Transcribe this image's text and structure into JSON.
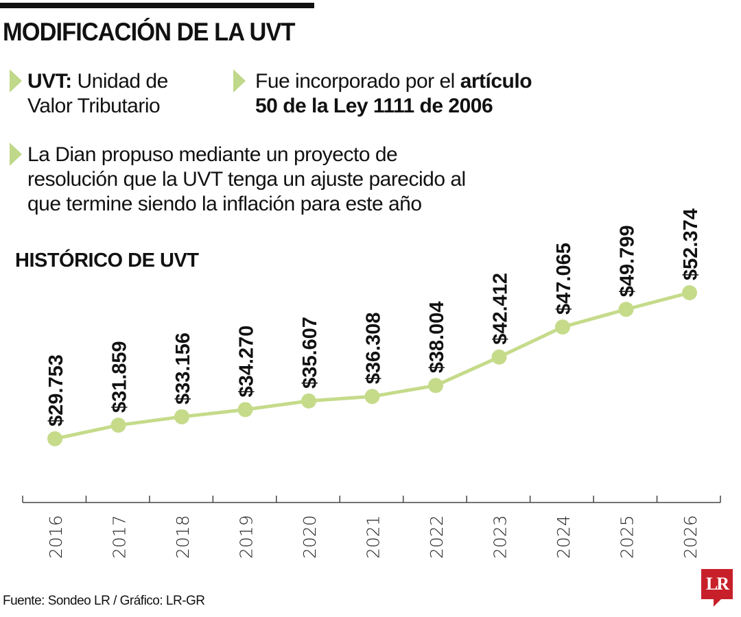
{
  "header": {
    "title": "MODIFICACIÓN DE LA UVT",
    "bullets": [
      {
        "bold": "UVT:",
        "text1": " Unidad de",
        "text2": "Valor Tributario"
      },
      {
        "text1": "Fue incorporado por el ",
        "bold1": "artículo",
        "bold2": "50 de la Ley 1111 de 2006"
      },
      {
        "line1": "La Dian propuso mediante un proyecto de",
        "line2": "resolución que la UVT tenga un ajuste parecido al",
        "line3": "que termine siendo la inflación para este año"
      }
    ],
    "subtitle": "HISTÓRICO DE UVT"
  },
  "chart_data": {
    "type": "line",
    "title": "HISTÓRICO DE UVT",
    "xlabel": "",
    "ylabel": "",
    "categories": [
      "2016",
      "2017",
      "2018",
      "2019",
      "2020",
      "2021",
      "2022",
      "2023",
      "2024",
      "2025",
      "2026"
    ],
    "values": [
      29753,
      31859,
      33156,
      34270,
      35607,
      36308,
      38004,
      42412,
      47065,
      49799,
      52374
    ],
    "data_labels": [
      "$29.753",
      "$31.859",
      "$33.156",
      "$34.270",
      "$35.607",
      "$36.308",
      "$38.004",
      "$42.412",
      "$47.065",
      "$49.799",
      "$52.374"
    ],
    "grid": false,
    "legend": "none",
    "line_color": "#c5db8a"
  },
  "footer": {
    "source": "Fuente: Sondeo LR / Gráfico: LR-GR",
    "logo": "LR"
  }
}
